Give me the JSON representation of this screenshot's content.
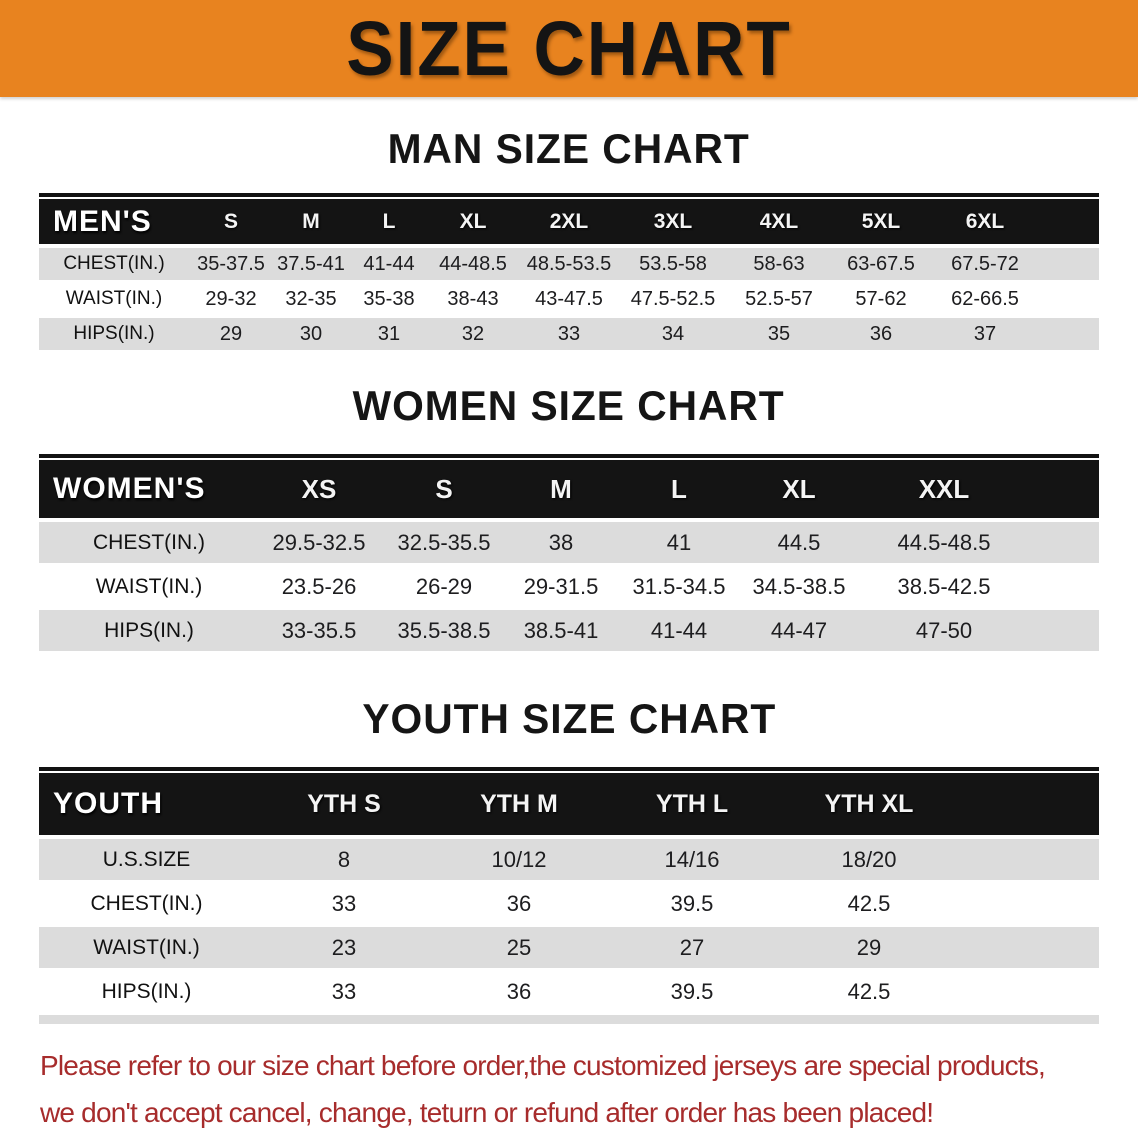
{
  "banner": {
    "title": "SIZE CHART",
    "bg_color": "#E8831F",
    "title_color": "#141414"
  },
  "chart_data": [
    {
      "type": "table",
      "title": "MAN SIZE CHART",
      "corner_label": "MEN'S",
      "columns": [
        "S",
        "M",
        "L",
        "XL",
        "2XL",
        "3XL",
        "4XL",
        "5XL",
        "6XL"
      ],
      "rows": [
        {
          "label": "CHEST(IN.)",
          "values": [
            "35-37.5",
            "37.5-41",
            "41-44",
            "44-48.5",
            "48.5-53.5",
            "53.5-58",
            "58-63",
            "63-67.5",
            "67.5-72"
          ]
        },
        {
          "label": "WAIST(IN.)",
          "values": [
            "29-32",
            "32-35",
            "35-38",
            "38-43",
            "43-47.5",
            "47.5-52.5",
            "52.5-57",
            "57-62",
            "62-66.5"
          ]
        },
        {
          "label": "HIPS(IN.)",
          "values": [
            "29",
            "30",
            "31",
            "32",
            "33",
            "34",
            "35",
            "36",
            "37"
          ]
        }
      ]
    },
    {
      "type": "table",
      "title": "WOMEN SIZE CHART",
      "corner_label": "WOMEN'S",
      "columns": [
        "XS",
        "S",
        "M",
        "L",
        "XL",
        "XXL"
      ],
      "rows": [
        {
          "label": "CHEST(IN.)",
          "values": [
            "29.5-32.5",
            "32.5-35.5",
            "38",
            "41",
            "44.5",
            "44.5-48.5"
          ]
        },
        {
          "label": "WAIST(IN.)",
          "values": [
            "23.5-26",
            "26-29",
            "29-31.5",
            "31.5-34.5",
            "34.5-38.5",
            "38.5-42.5"
          ]
        },
        {
          "label": "HIPS(IN.)",
          "values": [
            "33-35.5",
            "35.5-38.5",
            "38.5-41",
            "41-44",
            "44-47",
            "47-50"
          ]
        }
      ]
    },
    {
      "type": "table",
      "title": "YOUTH SIZE CHART",
      "corner_label": "YOUTH",
      "columns": [
        "YTH S",
        "YTH M",
        "YTH L",
        "YTH XL"
      ],
      "rows": [
        {
          "label": "U.S.SIZE",
          "values": [
            "8",
            "10/12",
            "14/16",
            "18/20"
          ]
        },
        {
          "label": "CHEST(IN.)",
          "values": [
            "33",
            "36",
            "39.5",
            "42.5"
          ]
        },
        {
          "label": "WAIST(IN.)",
          "values": [
            "23",
            "25",
            "27",
            "29"
          ]
        },
        {
          "label": "HIPS(IN.)",
          "values": [
            "33",
            "36",
            "39.5",
            "42.5"
          ]
        }
      ]
    }
  ],
  "disclaimer": {
    "lines": [
      "Please refer to our size chart before order,the customized jerseys are special products,",
      "we don't accept cancel, change, teturn or refund after order has been placed!"
    ],
    "color": "#A72C2C"
  },
  "colors": {
    "row_stripe": "#DCDCDC",
    "header_bar": "#141414",
    "header_text": "#FFFFFF"
  }
}
